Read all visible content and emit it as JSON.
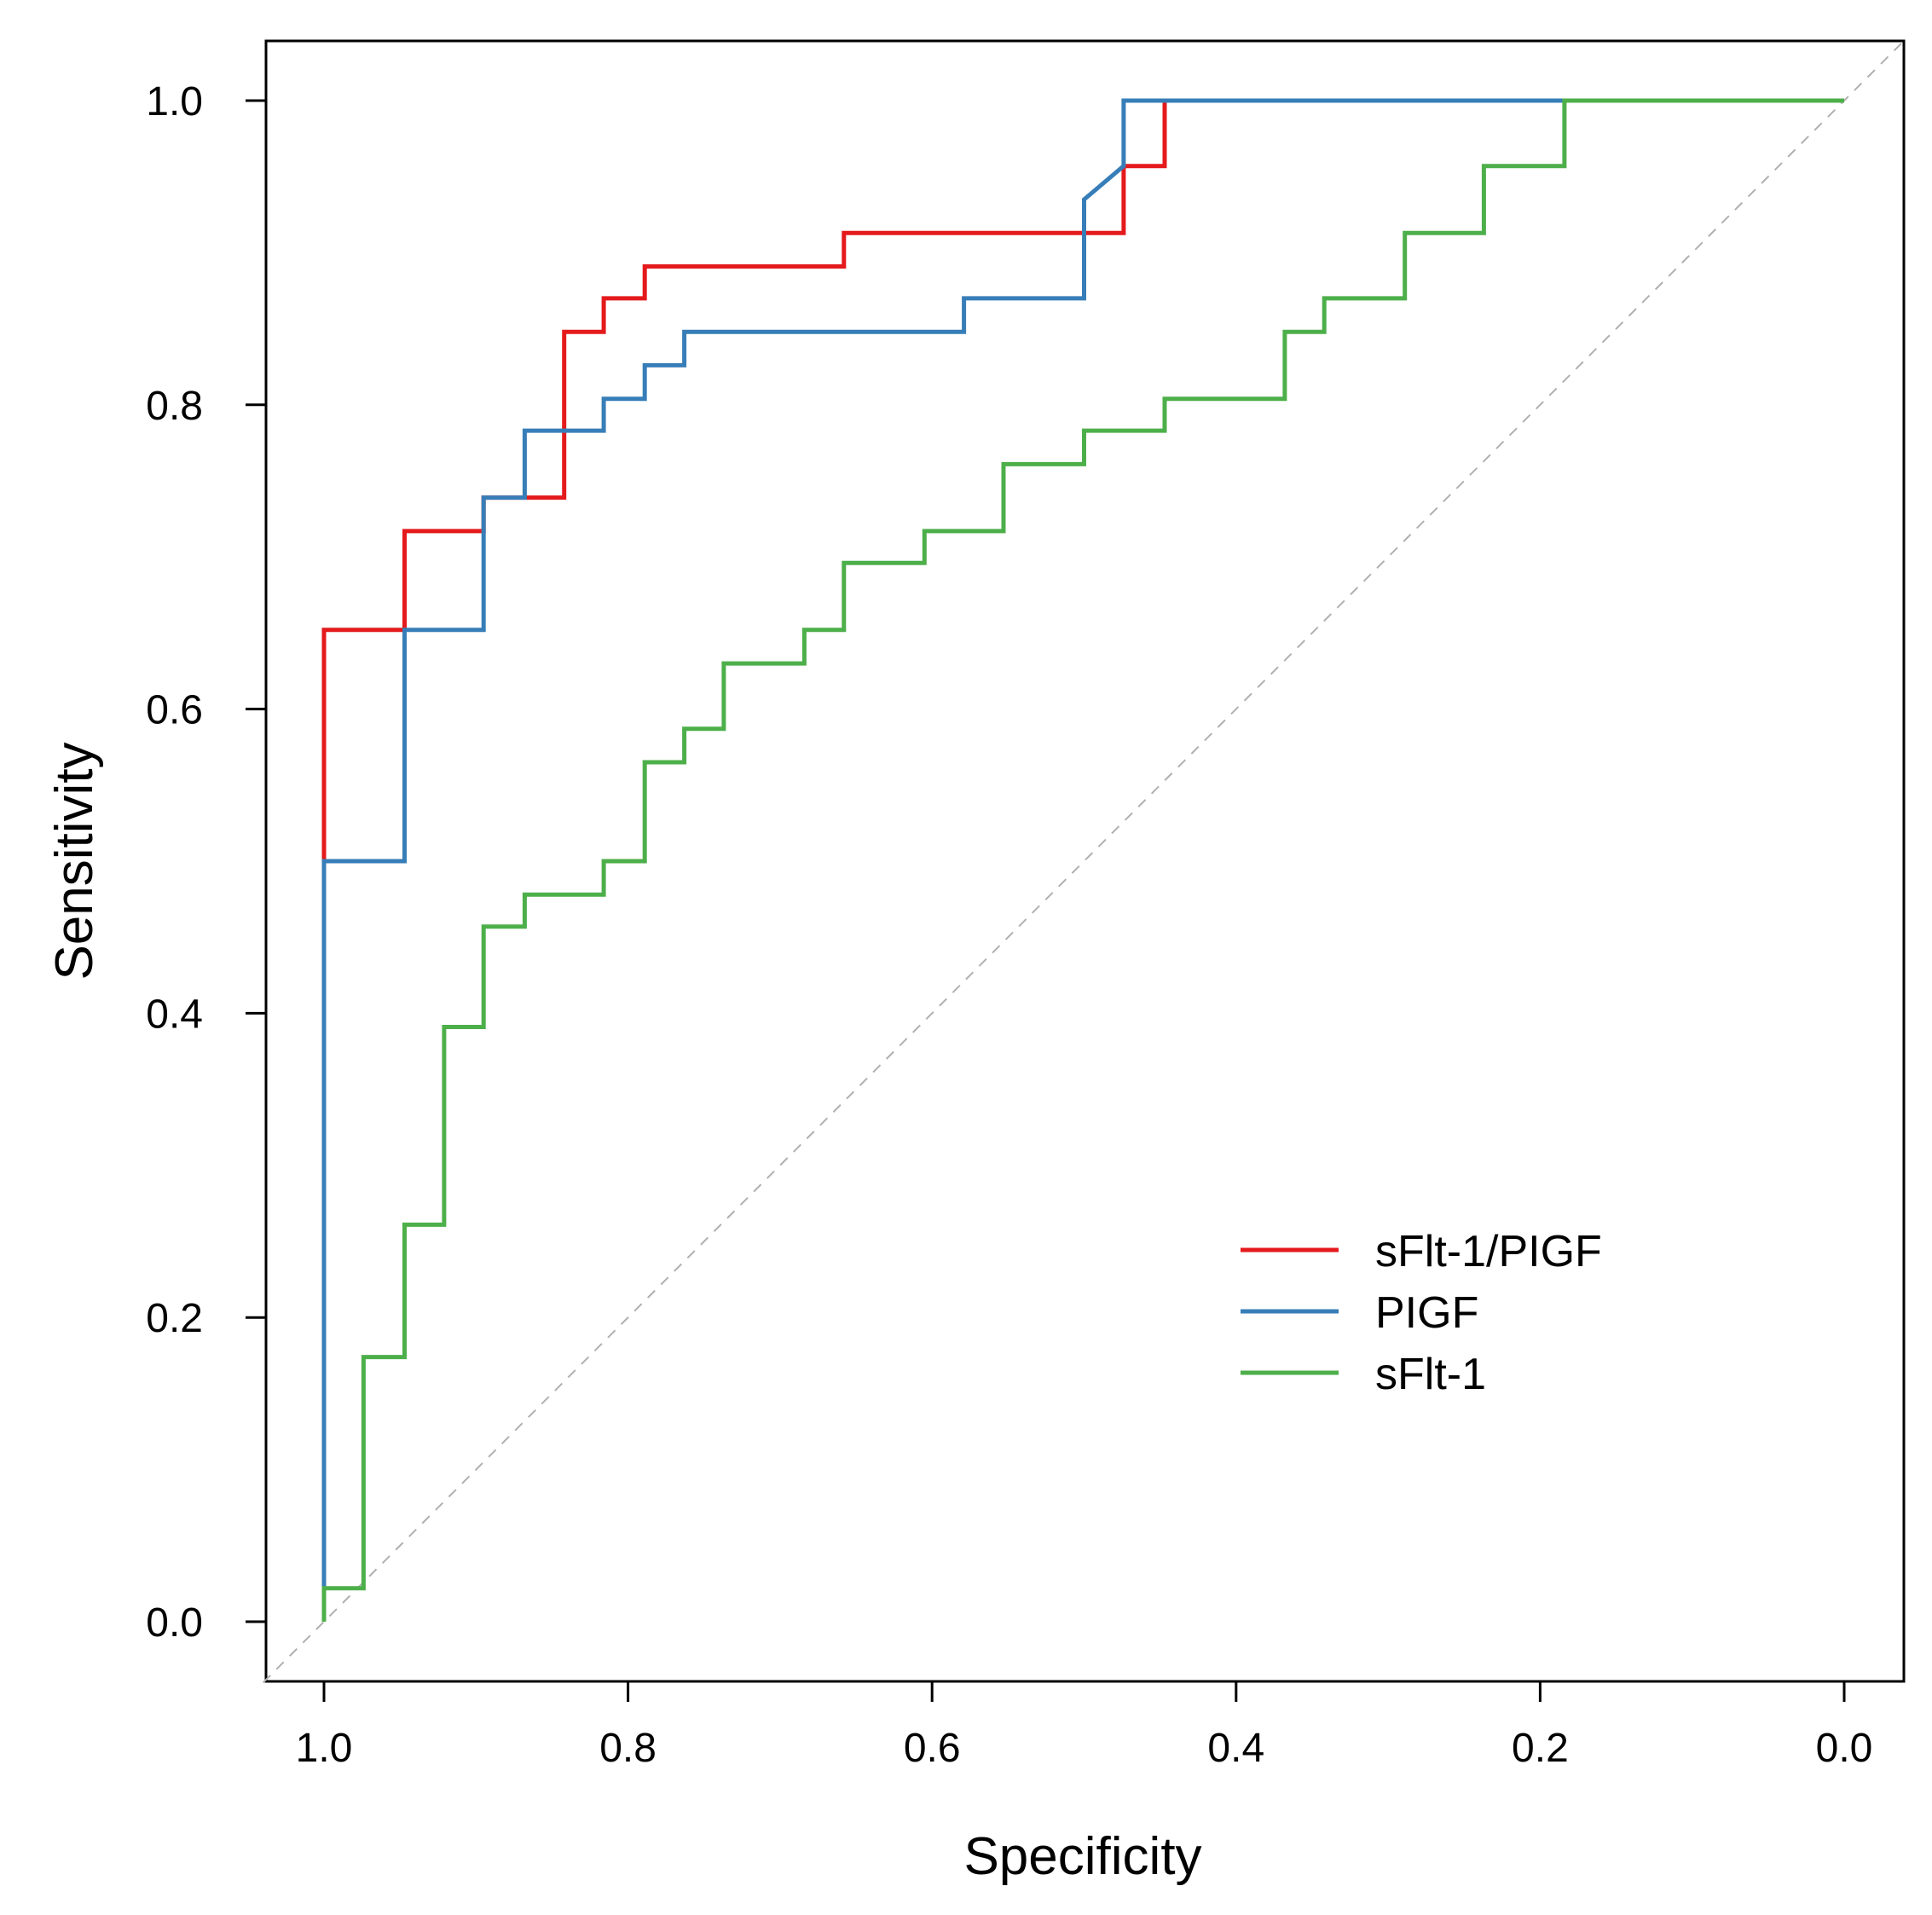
{
  "chart_data": {
    "type": "line",
    "title": "",
    "xlabel": "Specificity",
    "ylabel": "Sensitivity",
    "xlim": [
      1.0,
      0.0
    ],
    "x_reversed": true,
    "ylim": [
      0.0,
      1.0
    ],
    "x_ticks": [
      "1.0",
      "0.8",
      "0.6",
      "0.4",
      "0.2",
      "0.0"
    ],
    "y_ticks": [
      "0.0",
      "0.2",
      "0.4",
      "0.6",
      "0.8",
      "1.0"
    ],
    "grid": false,
    "legend_position": "bottom-right",
    "reference_line": {
      "from": [
        1.0,
        0.0
      ],
      "to": [
        0.0,
        1.0
      ],
      "style": "dashed",
      "color": "#b0b0b0"
    },
    "series": [
      {
        "name": "sFlt-1/PIGF",
        "color": "#e41a1c",
        "points": [
          [
            1.0,
            0.5
          ],
          [
            1.0,
            0.652
          ],
          [
            0.947,
            0.652
          ],
          [
            0.947,
            0.717
          ],
          [
            0.895,
            0.717
          ],
          [
            0.895,
            0.739
          ],
          [
            0.842,
            0.739
          ],
          [
            0.842,
            0.848
          ],
          [
            0.816,
            0.848
          ],
          [
            0.816,
            0.87
          ],
          [
            0.789,
            0.87
          ],
          [
            0.789,
            0.891
          ],
          [
            0.658,
            0.891
          ],
          [
            0.658,
            0.913
          ],
          [
            0.474,
            0.913
          ],
          [
            0.474,
            0.957
          ],
          [
            0.447,
            0.957
          ],
          [
            0.447,
            1.0
          ],
          [
            0.0,
            1.0
          ]
        ]
      },
      {
        "name": "PIGF",
        "color": "#377eb8",
        "points": [
          [
            1.0,
            0.0
          ],
          [
            1.0,
            0.5
          ],
          [
            0.947,
            0.5
          ],
          [
            0.947,
            0.652
          ],
          [
            0.895,
            0.652
          ],
          [
            0.895,
            0.739
          ],
          [
            0.868,
            0.739
          ],
          [
            0.868,
            0.783
          ],
          [
            0.816,
            0.783
          ],
          [
            0.816,
            0.804
          ],
          [
            0.789,
            0.804
          ],
          [
            0.789,
            0.826
          ],
          [
            0.763,
            0.826
          ],
          [
            0.763,
            0.848
          ],
          [
            0.579,
            0.848
          ],
          [
            0.579,
            0.87
          ],
          [
            0.5,
            0.87
          ],
          [
            0.5,
            0.935
          ],
          [
            0.474,
            0.957
          ],
          [
            0.474,
            1.0
          ],
          [
            0.0,
            1.0
          ]
        ]
      },
      {
        "name": "sFlt-1",
        "color": "#4daf4a",
        "points": [
          [
            1.0,
            0.0
          ],
          [
            1.0,
            0.022
          ],
          [
            0.974,
            0.022
          ],
          [
            0.974,
            0.174
          ],
          [
            0.947,
            0.174
          ],
          [
            0.947,
            0.261
          ],
          [
            0.921,
            0.261
          ],
          [
            0.921,
            0.391
          ],
          [
            0.895,
            0.391
          ],
          [
            0.895,
            0.457
          ],
          [
            0.868,
            0.457
          ],
          [
            0.868,
            0.478
          ],
          [
            0.816,
            0.478
          ],
          [
            0.816,
            0.5
          ],
          [
            0.789,
            0.5
          ],
          [
            0.789,
            0.565
          ],
          [
            0.763,
            0.565
          ],
          [
            0.763,
            0.587
          ],
          [
            0.737,
            0.587
          ],
          [
            0.737,
            0.63
          ],
          [
            0.684,
            0.63
          ],
          [
            0.684,
            0.652
          ],
          [
            0.658,
            0.652
          ],
          [
            0.658,
            0.696
          ],
          [
            0.605,
            0.696
          ],
          [
            0.605,
            0.717
          ],
          [
            0.553,
            0.717
          ],
          [
            0.553,
            0.761
          ],
          [
            0.5,
            0.761
          ],
          [
            0.5,
            0.783
          ],
          [
            0.447,
            0.783
          ],
          [
            0.447,
            0.804
          ],
          [
            0.368,
            0.804
          ],
          [
            0.368,
            0.848
          ],
          [
            0.342,
            0.848
          ],
          [
            0.342,
            0.87
          ],
          [
            0.289,
            0.87
          ],
          [
            0.289,
            0.913
          ],
          [
            0.237,
            0.913
          ],
          [
            0.237,
            0.957
          ],
          [
            0.184,
            0.957
          ],
          [
            0.184,
            1.0
          ],
          [
            0.0,
            1.0
          ]
        ]
      }
    ]
  }
}
